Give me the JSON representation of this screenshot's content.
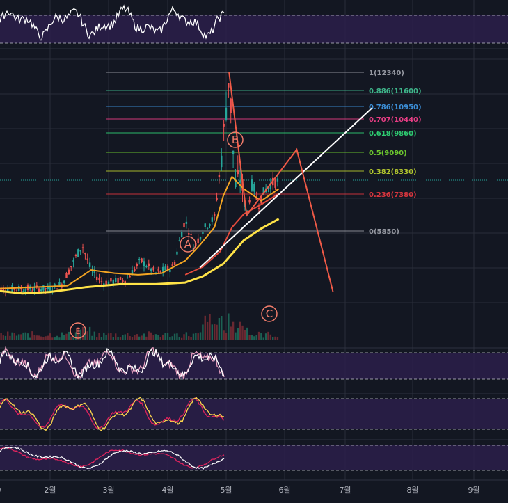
{
  "colors": {
    "background": "#131722",
    "grid": "#2a2e39",
    "band": "#2b1e4a",
    "band_line": "#cfcfd8",
    "candle_up": "#26a69a",
    "candle_down": "#ef5350",
    "ma_fast": "#f5a623",
    "ma_mid": "#e84c3d",
    "ma_slow": "#ffe347",
    "wave": "#f05a47",
    "trendline": "#ffffff",
    "wave_label": "#f37d6b",
    "stoch_k": "#ffd84d",
    "stoch_d": "#e0245e",
    "osc_white": "#ffffff",
    "osc_red": "#e0245e"
  },
  "x_axis": {
    "ticks": [
      "0",
      "2월",
      "3월",
      "4월",
      "5월",
      "6월",
      "7월",
      "8월",
      "9월"
    ]
  },
  "fib_levels": [
    {
      "label": "1(12340)",
      "ratio": 1,
      "price": 12340,
      "color": "#9598a1"
    },
    {
      "label": "0.886(11600)",
      "ratio": 0.886,
      "price": 11600,
      "color": "#3fb68b"
    },
    {
      "label": "0.786(10950)",
      "ratio": 0.786,
      "price": 10950,
      "color": "#3c8fd8"
    },
    {
      "label": "0.707(10440)",
      "ratio": 0.707,
      "price": 10440,
      "color": "#e83d84"
    },
    {
      "label": "0.618(9860)",
      "ratio": 0.618,
      "price": 9860,
      "color": "#2ecc71"
    },
    {
      "label": "0.5(9090)",
      "ratio": 0.5,
      "price": 9090,
      "color": "#6ecb2e"
    },
    {
      "label": "0.382(8330)",
      "ratio": 0.382,
      "price": 8330,
      "color": "#b5c82e"
    },
    {
      "label": "0.236(7380)",
      "ratio": 0.236,
      "price": 7380,
      "color": "#d9363e"
    },
    {
      "label": "0(5850)",
      "ratio": 0,
      "price": 5850,
      "color": "#9598a1"
    }
  ],
  "wave_labels": [
    "A",
    "B",
    "C",
    "E"
  ],
  "chart_data": {
    "type": "line",
    "title": "",
    "x_ticks": [
      "2월",
      "3월",
      "4월",
      "5월",
      "6월",
      "7월",
      "8월",
      "9월"
    ],
    "price_ylim": [
      3400,
      14300
    ],
    "last_price": 7920,
    "price_path": [
      {
        "month": 1.0,
        "price": 4000
      },
      {
        "month": 1.2,
        "price": 4150
      },
      {
        "month": 1.55,
        "price": 5400
      },
      {
        "month": 1.7,
        "price": 4600
      },
      {
        "month": 1.9,
        "price": 4200
      },
      {
        "month": 2.3,
        "price": 4300
      },
      {
        "month": 2.55,
        "price": 4900
      },
      {
        "month": 2.8,
        "price": 4500
      },
      {
        "month": 3.1,
        "price": 4700
      },
      {
        "month": 3.3,
        "price": 6300
      },
      {
        "month": 3.45,
        "price": 5300
      },
      {
        "month": 3.6,
        "price": 5900
      },
      {
        "month": 3.8,
        "price": 6400
      },
      {
        "month": 3.95,
        "price": 9600
      },
      {
        "month": 4.05,
        "price": 12340
      },
      {
        "month": 4.15,
        "price": 7700
      },
      {
        "month": 4.25,
        "price": 8100
      },
      {
        "month": 4.35,
        "price": 6500
      },
      {
        "month": 4.45,
        "price": 7900
      },
      {
        "month": 4.55,
        "price": 6900
      },
      {
        "month": 4.65,
        "price": 7500
      },
      {
        "month": 4.75,
        "price": 7800
      },
      {
        "month": 4.9,
        "price": 7920
      }
    ],
    "moving_averages": [
      {
        "color_key": "ma_fast",
        "points": [
          [
            0.0,
            4000
          ],
          [
            1.3,
            4100
          ],
          [
            1.7,
            4600
          ],
          [
            2.1,
            4500
          ],
          [
            2.5,
            4450
          ],
          [
            2.9,
            4500
          ],
          [
            3.3,
            4900
          ],
          [
            3.55,
            5400
          ],
          [
            3.8,
            6000
          ],
          [
            3.95,
            7300
          ],
          [
            4.1,
            8100
          ],
          [
            4.3,
            7600
          ],
          [
            4.6,
            7100
          ],
          [
            4.9,
            7600
          ]
        ]
      },
      {
        "color_key": "ma_mid",
        "points": [
          [
            3.3,
            4450
          ],
          [
            3.6,
            4700
          ],
          [
            3.9,
            5200
          ],
          [
            4.1,
            6000
          ],
          [
            4.3,
            6550
          ],
          [
            4.6,
            6950
          ],
          [
            4.9,
            7400
          ]
        ]
      },
      {
        "color_key": "ma_slow",
        "points": [
          [
            0.0,
            3950
          ],
          [
            0.5,
            3850
          ],
          [
            1.0,
            3900
          ],
          [
            1.6,
            4050
          ],
          [
            2.2,
            4150
          ],
          [
            2.8,
            4150
          ],
          [
            3.3,
            4200
          ],
          [
            3.6,
            4400
          ],
          [
            3.95,
            4800
          ],
          [
            4.3,
            5550
          ],
          [
            4.6,
            5950
          ],
          [
            4.9,
            6350
          ]
        ]
      }
    ],
    "wave_projection": [
      {
        "label": "A",
        "month": 4.35,
        "price": 6500
      },
      {
        "label": "B",
        "month": 5.2,
        "price": 9200
      },
      {
        "label": "C",
        "month": 5.8,
        "price": 3900
      }
    ],
    "trendline": [
      [
        3.55,
        4900
      ],
      [
        6.4,
        10700
      ]
    ]
  }
}
